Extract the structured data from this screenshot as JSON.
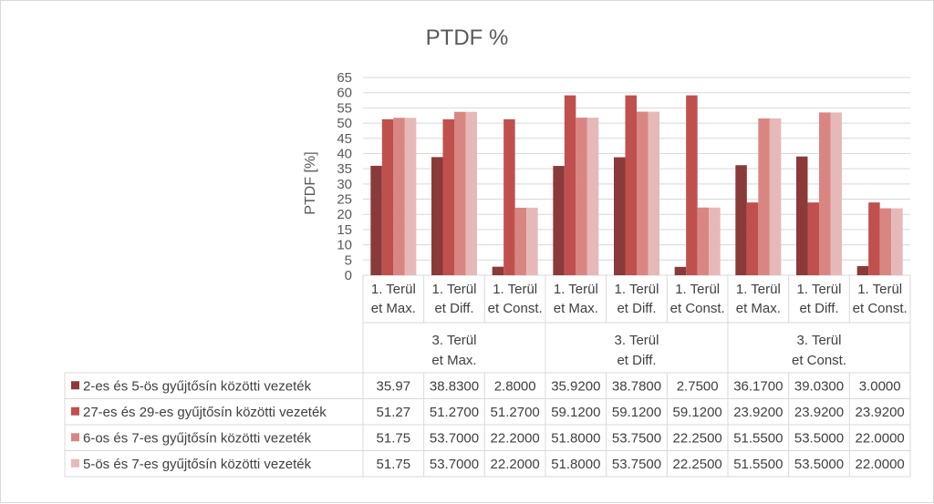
{
  "chart_data": {
    "type": "bar",
    "title": "PTDF %",
    "ylabel": "PTDF [%]",
    "xlabel": "",
    "ylim": [
      0,
      65
    ],
    "yticks": [
      0,
      5,
      10,
      15,
      20,
      25,
      30,
      35,
      40,
      45,
      50,
      55,
      60,
      65
    ],
    "grid": true,
    "legend": "data-table",
    "groups": [
      {
        "label": "3. Terül\net Max.",
        "categories": [
          "1. Terül\net Max.",
          "1. Terül\net Diff.",
          "1. Terül\net Const."
        ]
      },
      {
        "label": "3. Terül\net Diff.",
        "categories": [
          "1. Terül\net Max.",
          "1. Terül\net Diff.",
          "1. Terül\net Const."
        ]
      },
      {
        "label": "3. Terül\net Const.",
        "categories": [
          "1. Terül\net Max.",
          "1. Terül\net Diff.",
          "1. Terül\net Const."
        ]
      }
    ],
    "series": [
      {
        "name": "2-es és 5-ös gyűjtősín közötti vezeték",
        "color": "#8b3a3a",
        "values": [
          35.97,
          38.83,
          2.8,
          35.92,
          38.78,
          2.75,
          36.17,
          39.03,
          3.0
        ],
        "labels": [
          "35.97",
          "38.8300",
          "2.8000",
          "35.9200",
          "38.7800",
          "2.7500",
          "36.1700",
          "39.0300",
          "3.0000"
        ]
      },
      {
        "name": "27-es és 29-es gyűjtősín közötti vezeték",
        "color": "#c0504d",
        "values": [
          51.27,
          51.27,
          51.27,
          59.12,
          59.12,
          59.12,
          23.92,
          23.92,
          23.92
        ],
        "labels": [
          "51.27",
          "51.2700",
          "51.2700",
          "59.1200",
          "59.1200",
          "59.1200",
          "23.9200",
          "23.9200",
          "23.9200"
        ]
      },
      {
        "name": "6-os és 7-es gyűjtősín közötti vezeték",
        "color": "#d98683",
        "values": [
          51.75,
          53.7,
          22.2,
          51.8,
          53.75,
          22.25,
          51.55,
          53.5,
          22.0
        ],
        "labels": [
          "51.75",
          "53.7000",
          "22.2000",
          "51.8000",
          "53.7500",
          "22.2500",
          "51.5500",
          "53.5000",
          "22.0000"
        ]
      },
      {
        "name": "5-ös és 7-es gyűjtősín közötti vezeték",
        "color": "#e6b9b8",
        "values": [
          51.75,
          53.7,
          22.2,
          51.8,
          53.75,
          22.25,
          51.55,
          53.5,
          22.0
        ],
        "labels": [
          "51.75",
          "53.7000",
          "22.2000",
          "51.8000",
          "53.7500",
          "22.2500",
          "51.5500",
          "53.5000",
          "22.0000"
        ]
      }
    ]
  }
}
